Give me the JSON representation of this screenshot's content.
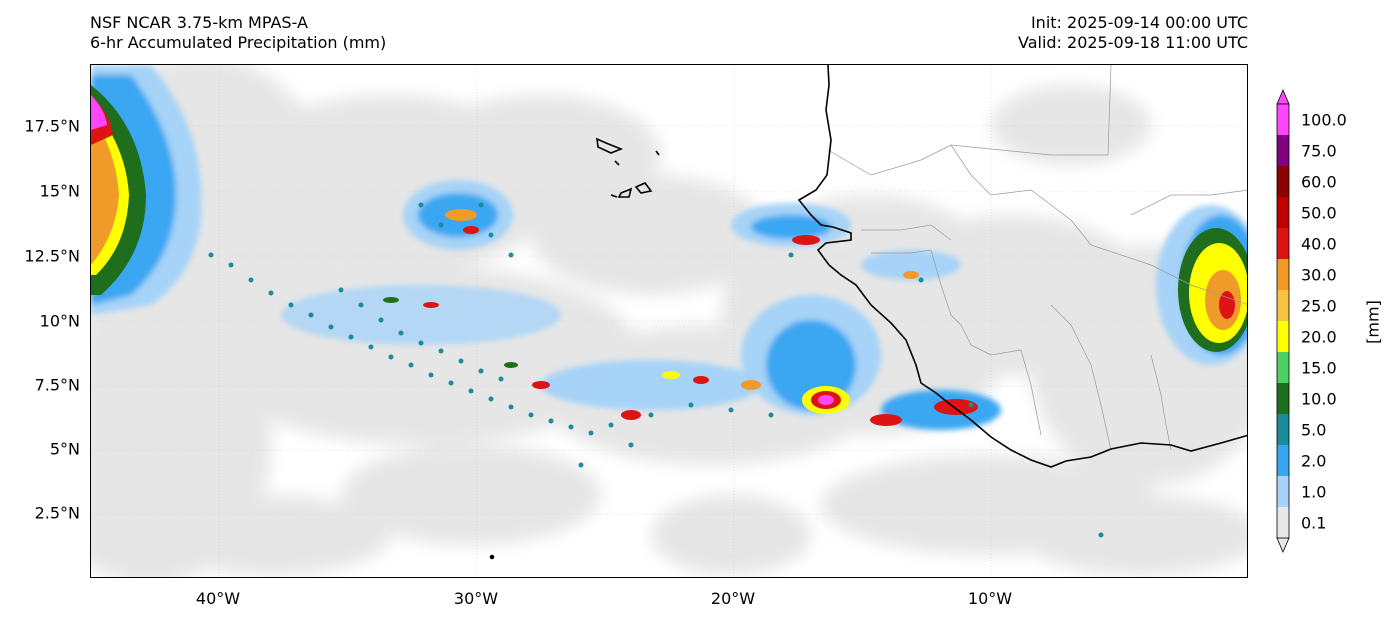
{
  "header": {
    "model": "NSF NCAR 3.75-km MPAS-A",
    "field": "6-hr Accumulated Precipitation (mm)",
    "init": "Init: 2025-09-14 00:00 UTC",
    "valid": "Valid: 2025-09-18 11:00 UTC"
  },
  "map": {
    "lon_range": [
      -45,
      0
    ],
    "lat_range": [
      0,
      20
    ],
    "lat_ticks": [
      "17.5°N",
      "15°N",
      "12.5°N",
      "10°N",
      "7.5°N",
      "5°N",
      "2.5°N"
    ],
    "lon_ticks": [
      "40°W",
      "30°W",
      "20°W",
      "10°W"
    ],
    "gridlines": true,
    "colors": {
      "trace": "#e6e6e6",
      "coast": "#000000",
      "border": "#9a9a9a"
    }
  },
  "colorbar": {
    "title": "[mm]",
    "levels": [
      "0.1",
      "1.0",
      "2.0",
      "5.0",
      "10.0",
      "15.0",
      "20.0",
      "25.0",
      "30.0",
      "40.0",
      "50.0",
      "60.0",
      "75.0",
      "100.0"
    ],
    "colors": [
      "#e8e8e8",
      "#a6d3f7",
      "#3aa6f2",
      "#1a8c9c",
      "#1e6e1e",
      "#4cd264",
      "#ffff00",
      "#f5c242",
      "#f09a2a",
      "#dc1414",
      "#be0000",
      "#8c0000",
      "#800080",
      "#ff46ff"
    ]
  }
}
